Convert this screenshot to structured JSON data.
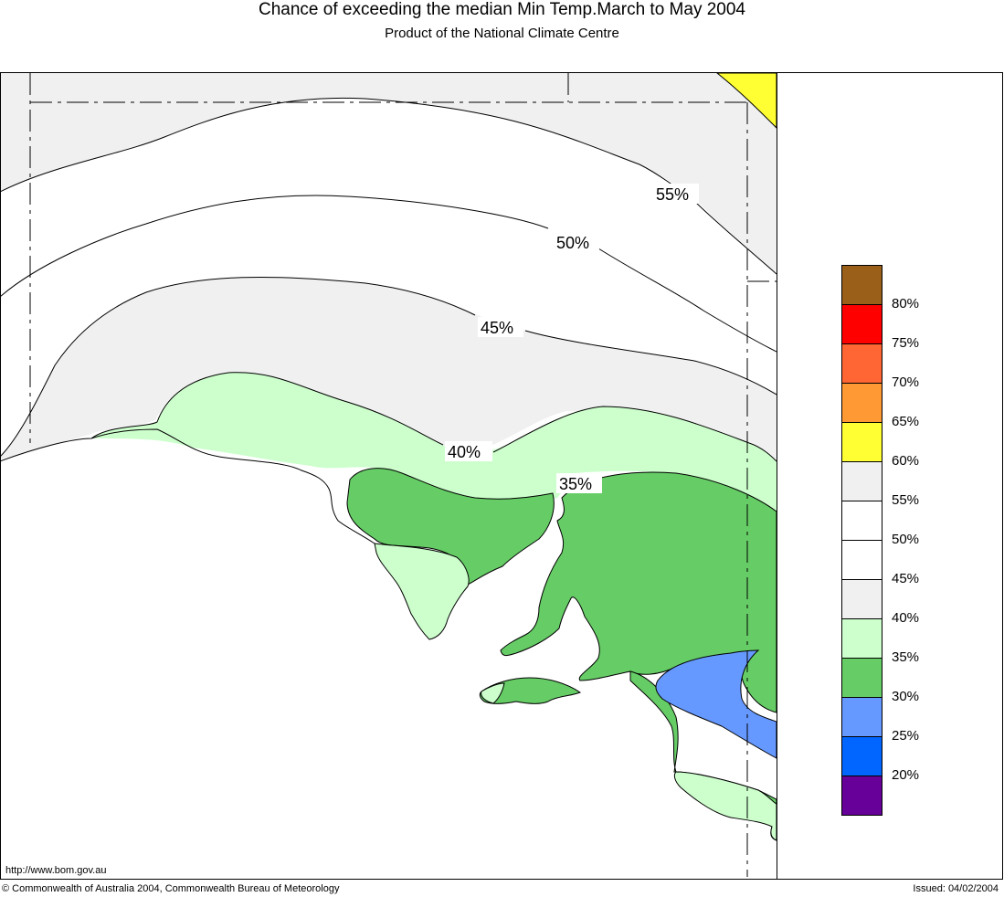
{
  "header": {
    "title": "Chance of exceeding the median Min Temp.March to May 2004",
    "subtitle": "Product of the National Climate Centre"
  },
  "contours": {
    "c55": "55%",
    "c50": "50%",
    "c45": "45%",
    "c40": "40%",
    "c35": "35%"
  },
  "legend": {
    "items": [
      {
        "label": "80%",
        "color": "#9a6019"
      },
      {
        "label": "75%",
        "color": "#ff0000"
      },
      {
        "label": "70%",
        "color": "#ff6633"
      },
      {
        "label": "65%",
        "color": "#ff9933"
      },
      {
        "label": "60%",
        "color": "#ffff33"
      },
      {
        "label": "55%",
        "color": "#f0f0f0"
      },
      {
        "label": "50%",
        "color": "#ffffff"
      },
      {
        "label": "45%",
        "color": "#ffffff"
      },
      {
        "label": "40%",
        "color": "#f0f0f0"
      },
      {
        "label": "35%",
        "color": "#ccffcc"
      },
      {
        "label": "30%",
        "color": "#66cc66"
      },
      {
        "label": "25%",
        "color": "#6699ff"
      },
      {
        "label": "20%",
        "color": "#0066ff"
      },
      {
        "label": "",
        "color": "#660099"
      }
    ]
  },
  "footer": {
    "url": "http://www.bom.gov.au",
    "copyright": "© Commonwealth of Australia 2004, Commonwealth Bureau of Meteorology",
    "issued": "Issued: 04/02/2004"
  }
}
